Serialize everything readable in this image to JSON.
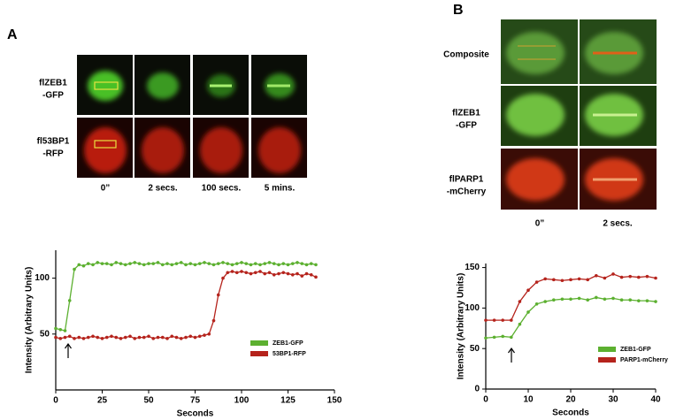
{
  "panels": [
    {
      "label": "A",
      "row_labels": [
        [
          "flZEB1",
          "-GFP"
        ],
        [
          "fl53BP1",
          "-RFP"
        ]
      ],
      "column_labels": [
        "0”",
        "2 secs.",
        "100 secs.",
        "5 mins."
      ]
    },
    {
      "label": "B",
      "row_labels": [
        [
          "Composite"
        ],
        [
          "flZEB1",
          "-GFP"
        ],
        [
          "flPARP1",
          "-mCherry"
        ]
      ],
      "column_labels": [
        "0”",
        "2 secs."
      ]
    }
  ],
  "chart_data": [
    {
      "type": "line",
      "xlabel": "Seconds",
      "ylabel": "Intensity (Arbitrary Units)",
      "x": [
        0,
        2.5,
        5,
        7.5,
        10,
        12.5,
        15,
        17.5,
        20,
        22.5,
        25,
        27.5,
        30,
        32.5,
        35,
        37.5,
        40,
        42.5,
        45,
        47.5,
        50,
        52.5,
        55,
        57.5,
        60,
        62.5,
        65,
        67.5,
        70,
        72.5,
        75,
        77.5,
        80,
        82.5,
        85,
        87.5,
        90,
        92.5,
        95,
        97.5,
        100,
        102.5,
        105,
        107.5,
        110,
        112.5,
        115,
        117.5,
        120,
        122.5,
        125,
        127.5,
        130,
        132.5,
        135,
        137.5,
        140
      ],
      "series": [
        {
          "name": "ZEB1-GFP",
          "color": "#5cb030",
          "values": [
            55,
            54,
            53,
            80,
            108,
            112,
            111,
            113,
            112,
            114,
            113,
            113,
            112,
            114,
            113,
            112,
            113,
            114,
            113,
            112,
            113,
            113,
            114,
            112,
            113,
            112,
            113,
            114,
            112,
            113,
            112,
            113,
            114,
            113,
            112,
            113,
            114,
            113,
            112,
            113,
            114,
            113,
            112,
            113,
            112,
            113,
            114,
            113,
            112,
            113,
            112,
            113,
            114,
            113,
            112,
            113,
            112
          ]
        },
        {
          "name": "53BP1-RFP",
          "color": "#b5231c",
          "values": [
            47,
            46,
            47,
            48,
            46,
            47,
            46,
            47,
            48,
            47,
            46,
            47,
            48,
            47,
            46,
            47,
            48,
            46,
            47,
            47,
            48,
            46,
            47,
            47,
            46,
            48,
            47,
            46,
            47,
            48,
            47,
            48,
            49,
            50,
            62,
            85,
            100,
            105,
            106,
            105,
            106,
            105,
            104,
            105,
            106,
            104,
            105,
            103,
            104,
            105,
            104,
            103,
            104,
            102,
            104,
            103,
            101
          ]
        }
      ],
      "xlim": [
        0,
        150
      ],
      "ylim": [
        0,
        125
      ],
      "xticks": [
        0,
        25,
        50,
        75,
        100,
        125,
        150
      ],
      "yticks": [
        50,
        100
      ],
      "legend": "lower right"
    },
    {
      "type": "line",
      "xlabel": "Seconds",
      "ylabel": "Intensity (Arbitrary Units)",
      "x": [
        0,
        2,
        4,
        6,
        8,
        10,
        12,
        14,
        16,
        18,
        20,
        22,
        24,
        26,
        28,
        30,
        32,
        34,
        36,
        38,
        40
      ],
      "series": [
        {
          "name": "ZEB1-GFP",
          "color": "#5cb030",
          "values": [
            63,
            64,
            65,
            64,
            80,
            95,
            105,
            108,
            110,
            111,
            111,
            112,
            110,
            113,
            111,
            112,
            110,
            110,
            109,
            109,
            108
          ]
        },
        {
          "name": "PARP1-mCherry",
          "color": "#b5231c",
          "values": [
            85,
            85,
            85,
            85,
            108,
            122,
            132,
            136,
            135,
            134,
            135,
            136,
            135,
            140,
            137,
            142,
            138,
            139,
            138,
            139,
            137
          ]
        }
      ],
      "xlim": [
        0,
        40
      ],
      "ylim": [
        0,
        155
      ],
      "xticks": [
        0,
        10,
        20,
        30,
        40
      ],
      "yticks": [
        0,
        50,
        100,
        150
      ],
      "legend": "lower right"
    }
  ]
}
